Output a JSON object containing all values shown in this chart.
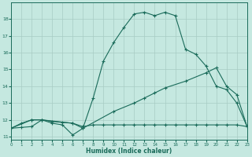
{
  "xlabel": "Humidex (Indice chaleur)",
  "bg_color": "#c5e8e0",
  "line_color": "#1a6b5a",
  "grid_color": "#a8ccc4",
  "line1_x": [
    0,
    1,
    2,
    3,
    4,
    5,
    6,
    7,
    8,
    9,
    10,
    11,
    12,
    13,
    14,
    15,
    16,
    17,
    18,
    19,
    20,
    21,
    22,
    23
  ],
  "line1_y": [
    11.5,
    11.8,
    12.0,
    12.0,
    11.8,
    11.7,
    11.1,
    11.5,
    13.3,
    15.5,
    16.6,
    17.5,
    18.3,
    18.4,
    18.2,
    18.4,
    18.2,
    16.2,
    15.9,
    15.2,
    14.0,
    13.8,
    13.0,
    11.6
  ],
  "line2_x": [
    0,
    2,
    3,
    6,
    7,
    10,
    12,
    13,
    14,
    15,
    17,
    19,
    20,
    21,
    22,
    23
  ],
  "line2_y": [
    11.5,
    12.0,
    12.0,
    11.8,
    11.5,
    12.5,
    13.0,
    13.3,
    13.6,
    13.9,
    14.3,
    14.8,
    15.1,
    14.0,
    13.5,
    11.6
  ],
  "line3_x": [
    0,
    1,
    2,
    3,
    4,
    5,
    6,
    7,
    8,
    9,
    10,
    11,
    12,
    13,
    14,
    15,
    16,
    17,
    18,
    19,
    20,
    21,
    22,
    23
  ],
  "line3_y": [
    11.5,
    11.55,
    11.6,
    12.0,
    11.9,
    11.85,
    11.8,
    11.6,
    11.7,
    11.7,
    11.7,
    11.7,
    11.7,
    11.7,
    11.7,
    11.7,
    11.7,
    11.7,
    11.7,
    11.7,
    11.7,
    11.7,
    11.7,
    11.6
  ],
  "xlim": [
    0,
    23
  ],
  "ylim": [
    10.8,
    19.0
  ],
  "yticks": [
    11,
    12,
    13,
    14,
    15,
    16,
    17,
    18
  ],
  "xticks": [
    0,
    1,
    2,
    3,
    4,
    5,
    6,
    7,
    8,
    9,
    10,
    11,
    12,
    13,
    14,
    15,
    16,
    17,
    18,
    19,
    20,
    21,
    22,
    23
  ]
}
